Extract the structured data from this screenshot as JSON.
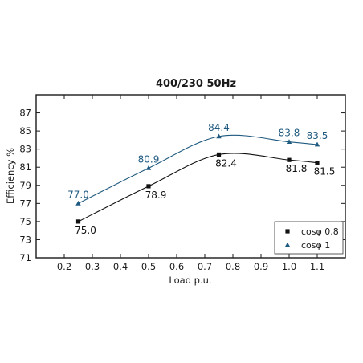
{
  "chart_data": {
    "type": "line",
    "title": "400/230 50Hz",
    "xlabel": "Load p.u.",
    "ylabel": "Efficiency %",
    "xlim": [
      0.1,
      1.2
    ],
    "ylim": [
      71,
      89
    ],
    "x_ticks": [
      "0.2",
      "0.3",
      "0.4",
      "0.5",
      "0.6",
      "0.7",
      "0.8",
      "0.9",
      "1.0",
      "1.1"
    ],
    "y_ticks": [
      "71",
      "73",
      "75",
      "77",
      "79",
      "81",
      "83",
      "85",
      "87"
    ],
    "grid": false,
    "legend_position": "bottom-right",
    "series": [
      {
        "name": "cosφ 0.8",
        "marker": "square",
        "color": "#111111",
        "label_color": "#111111",
        "label_position": "below",
        "x": [
          0.25,
          0.5,
          0.75,
          1.0,
          1.1
        ],
        "y": [
          75.0,
          78.9,
          82.4,
          81.8,
          81.5
        ],
        "labels": [
          "75.0",
          "78.9",
          "82.4",
          "81.8",
          "81.5"
        ]
      },
      {
        "name": "cosφ 1",
        "marker": "triangle",
        "color": "#1f5a80",
        "label_color": "#1f5a80",
        "label_position": "above",
        "x": [
          0.25,
          0.5,
          0.75,
          1.0,
          1.1
        ],
        "y": [
          77.0,
          80.9,
          84.4,
          83.8,
          83.5
        ],
        "labels": [
          "77.0",
          "80.9",
          "84.4",
          "83.8",
          "83.5"
        ]
      }
    ]
  }
}
